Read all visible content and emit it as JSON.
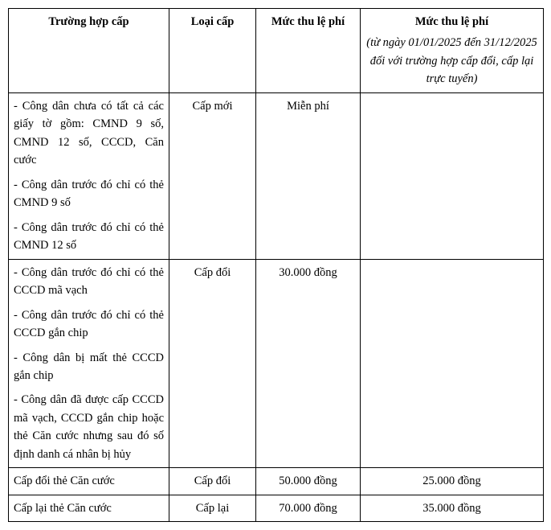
{
  "table": {
    "headers": {
      "col1": "Trường hợp cấp",
      "col2": "Loại cấp",
      "col3": "Mức thu lệ phí",
      "col4_main": "Mức thu lệ phí",
      "col4_sub": "(từ ngày 01/01/2025 đến 31/12/2025 đối với trường hợp cấp đổi, cấp lại trực tuyến)"
    },
    "rows": [
      {
        "case": {
          "items": [
            "- Công dân chưa có tất cả các giấy tờ gồm: CMND 9 số, CMND 12 số, CCCD, Căn cước",
            "- Công dân trước đó chỉ có thẻ CMND 9 số",
            "- Công dân trước đó chỉ có thẻ CMND 12 số"
          ]
        },
        "type": "Cấp mới",
        "fee": "Miễn phí",
        "fee2": ""
      },
      {
        "case": {
          "items": [
            "- Công dân trước đó chỉ có thẻ CCCD mã vạch",
            "- Công dân trước đó chỉ có thẻ CCCD gắn chip",
            "- Công dân bị mất thẻ CCCD gắn chip",
            "- Công dân đã được cấp CCCD mã vạch, CCCD gắn chip hoặc thẻ Căn cước nhưng sau đó số định danh cá nhân bị hủy"
          ]
        },
        "type": "Cấp đổi",
        "fee": "30.000 đồng",
        "fee2": ""
      },
      {
        "case": {
          "items": [
            "Cấp đổi thẻ Căn cước"
          ]
        },
        "type": "Cấp đổi",
        "fee": "50.000 đồng",
        "fee2": "25.000 đồng"
      },
      {
        "case": {
          "items": [
            "Cấp lại thẻ Căn cước"
          ]
        },
        "type": "Cấp lại",
        "fee": "70.000 đồng",
        "fee2": "35.000 đồng"
      }
    ]
  },
  "colors": {
    "border": "#000000",
    "background": "#ffffff",
    "text": "#000000"
  }
}
